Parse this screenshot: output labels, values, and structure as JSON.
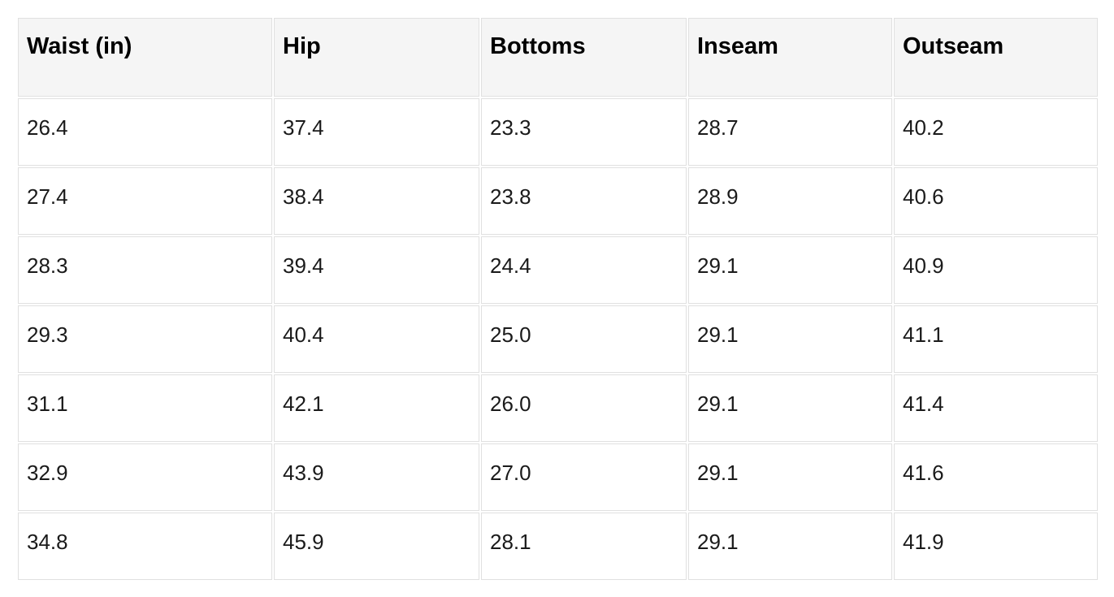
{
  "chart_data": {
    "type": "table",
    "columns": [
      "Waist (in)",
      "Hip",
      "Bottoms",
      "Inseam",
      "Outseam"
    ],
    "rows": [
      [
        "26.4",
        "37.4",
        "23.3",
        "28.7",
        "40.2"
      ],
      [
        "27.4",
        "38.4",
        "23.8",
        "28.9",
        "40.6"
      ],
      [
        "28.3",
        "39.4",
        "24.4",
        "29.1",
        "40.9"
      ],
      [
        "29.3",
        "40.4",
        "25.0",
        "29.1",
        "41.1"
      ],
      [
        "31.1",
        "42.1",
        "26.0",
        "29.1",
        "41.4"
      ],
      [
        "32.9",
        "43.9",
        "27.0",
        "29.1",
        "41.6"
      ],
      [
        "34.8",
        "45.9",
        "28.1",
        "29.1",
        "41.9"
      ]
    ],
    "units": "inches",
    "layout": {
      "header_position": "top",
      "grid": "on",
      "text_align": "left"
    }
  },
  "colors": {
    "page_bg": "#ffffff",
    "header_bg": "#f5f5f5",
    "border": "#e0e0e0",
    "header_text": "#000000",
    "cell_text": "#1a1a1a"
  }
}
